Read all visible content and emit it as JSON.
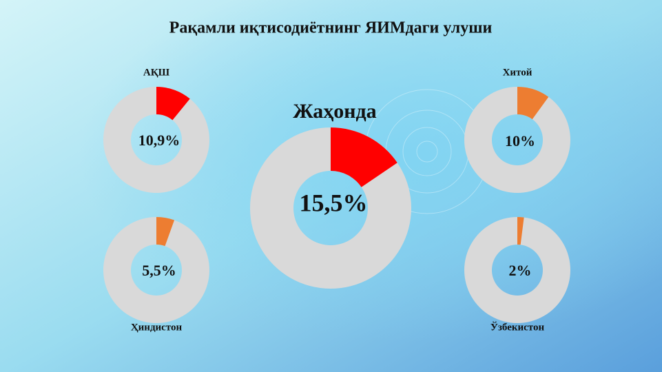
{
  "title": "Рақамли иқтисодиётнинг ЯИМдаги улуши",
  "chart_data": [
    {
      "type": "donut",
      "title": "АҚШ",
      "values": [
        10.9
      ],
      "value_labels": [
        "10,9%"
      ],
      "color": "#ff0000"
    },
    {
      "type": "donut",
      "title": "Хитой",
      "values": [
        10
      ],
      "value_labels": [
        "10%"
      ],
      "color": "#ed7d31"
    },
    {
      "type": "donut",
      "title": "Жаҳонда",
      "values": [
        15.5
      ],
      "value_labels": [
        "15,5%"
      ],
      "color": "#ff0000"
    },
    {
      "type": "donut",
      "title": "Ҳиндистон",
      "values": [
        5.5
      ],
      "value_labels": [
        "5,5%"
      ],
      "color": "#ed7d31"
    },
    {
      "type": "donut",
      "title": "Ўзбекистон",
      "values": [
        2
      ],
      "value_labels": [
        "2%"
      ],
      "color": "#ed7d31"
    }
  ]
}
